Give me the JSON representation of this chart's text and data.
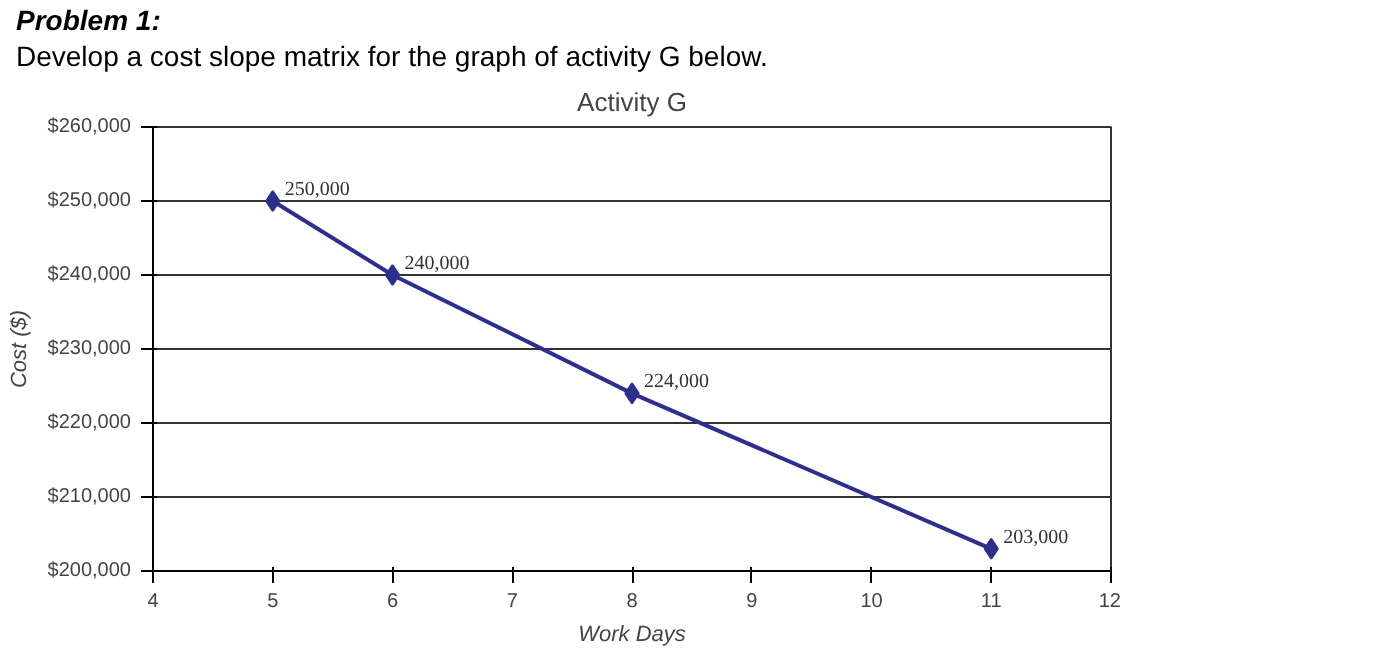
{
  "chart_data": {
    "type": "line",
    "title": "Activity G",
    "xlabel": "Work Days",
    "ylabel": "Cost ($)",
    "annotations": [
      "Problem 1:",
      "Develop a cost slope matrix for the graph of activity G below."
    ],
    "x": [
      5,
      6,
      8,
      11
    ],
    "series": [
      {
        "color": "#2e2e8c",
        "values": [
          250000,
          240000,
          224000,
          203000
        ],
        "value_labels": [
          "250,000",
          "240,000",
          "224,000",
          "203,000"
        ]
      }
    ],
    "xlim": [
      4,
      12
    ],
    "xticks": [
      4,
      5,
      6,
      7,
      8,
      9,
      10,
      11,
      12
    ],
    "ylim": [
      200000,
      260000
    ],
    "yticks": [
      {
        "value": 200000,
        "label": "$200,000"
      },
      {
        "value": 210000,
        "label": "$210,000"
      },
      {
        "value": 220000,
        "label": "$220,000"
      },
      {
        "value": 230000,
        "label": "$230,000"
      },
      {
        "value": 240000,
        "label": "$240,000"
      },
      {
        "value": 250000,
        "label": "$250,000"
      },
      {
        "value": 260000,
        "label": "$260,000"
      }
    ],
    "grid": "y",
    "marker": "diamond",
    "line_style": "solid"
  }
}
